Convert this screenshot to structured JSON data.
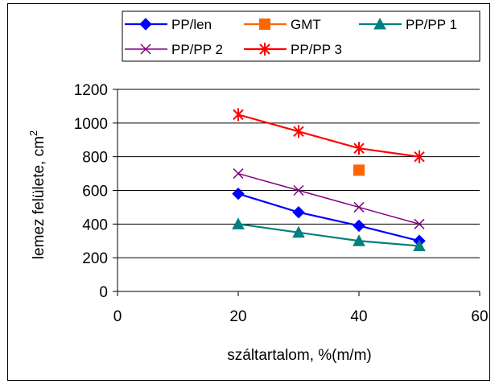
{
  "chart_data": {
    "type": "line",
    "xlabel": "száltartalom, %(m/m)",
    "ylabel": "lemez felülete, cm",
    "ylabel_superscript": "2",
    "xlim": [
      0,
      60
    ],
    "ylim": [
      0,
      1200
    ],
    "x_ticks": [
      "0",
      "20",
      "40",
      "60"
    ],
    "y_ticks": [
      "0",
      "200",
      "400",
      "600",
      "800",
      "1000",
      "1200"
    ],
    "grid": "horizontal",
    "legend_position": "top",
    "series": [
      {
        "name": "PP/len",
        "color": "#0000ff",
        "marker": "diamond",
        "line": true,
        "x": [
          20,
          30,
          40,
          50
        ],
        "y": [
          580,
          470,
          390,
          300
        ]
      },
      {
        "name": "GMT",
        "color": "#ff6600",
        "marker": "square",
        "line": false,
        "x": [
          40
        ],
        "y": [
          720
        ]
      },
      {
        "name": "PP/PP 1",
        "color": "#008080",
        "marker": "triangle",
        "line": true,
        "x": [
          20,
          30,
          40,
          50
        ],
        "y": [
          400,
          350,
          300,
          270
        ]
      },
      {
        "name": "PP/PP 2",
        "color": "#800080",
        "marker": "x",
        "line": true,
        "x": [
          20,
          30,
          40,
          50
        ],
        "y": [
          700,
          600,
          500,
          400
        ]
      },
      {
        "name": "PP/PP 3",
        "color": "#ff0000",
        "marker": "star",
        "line": true,
        "x": [
          20,
          30,
          40,
          50
        ],
        "y": [
          1050,
          950,
          850,
          800
        ]
      }
    ]
  }
}
